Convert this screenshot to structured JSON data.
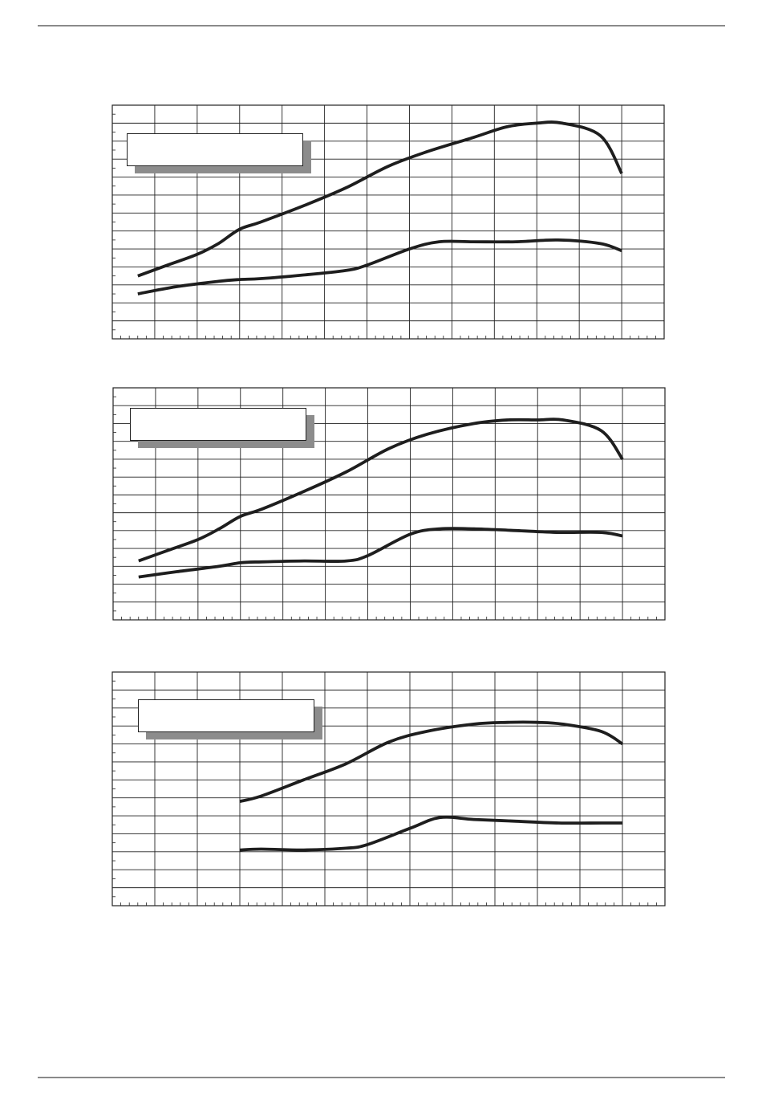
{
  "page": {
    "line_color": "#1e1e1e",
    "grid_color": "#222222",
    "rule_color": "#8a8a8a",
    "legend_shadow_color": "#8c8c8c"
  },
  "chart_data": [
    {
      "type": "line",
      "xlim": [
        0,
        13
      ],
      "ylim": [
        0,
        13
      ],
      "grid": true,
      "legend": {
        "placement": "top-left",
        "entries": []
      },
      "series": [
        {
          "x": [
            0.6,
            1.3,
            2.0,
            2.5,
            3.0,
            3.5,
            4.5,
            5.5,
            6.5,
            7.4,
            8.5,
            9.3,
            10.0,
            10.6,
            11.5,
            12.0
          ],
          "y": [
            3.5,
            4.1,
            4.7,
            5.3,
            6.1,
            6.5,
            7.4,
            8.4,
            9.6,
            10.4,
            11.2,
            11.8,
            12.0,
            12.0,
            11.3,
            9.2
          ]
        },
        {
          "x": [
            0.6,
            1.5,
            2.5,
            3.0,
            3.5,
            4.5,
            5.5,
            6.0,
            7.0,
            7.7,
            8.5,
            9.5,
            10.5,
            11.5,
            12.0
          ],
          "y": [
            2.5,
            2.9,
            3.2,
            3.3,
            3.35,
            3.55,
            3.8,
            4.1,
            5.0,
            5.4,
            5.4,
            5.4,
            5.5,
            5.3,
            4.9
          ]
        }
      ]
    },
    {
      "type": "line",
      "xlim": [
        0,
        13
      ],
      "ylim": [
        0,
        13
      ],
      "grid": true,
      "legend": {
        "placement": "top-left",
        "entries": []
      },
      "series": [
        {
          "x": [
            0.6,
            1.3,
            2.0,
            2.5,
            3.0,
            3.5,
            4.5,
            5.5,
            6.5,
            7.4,
            8.5,
            9.3,
            10.0,
            10.6,
            11.5,
            12.0
          ],
          "y": [
            3.3,
            3.9,
            4.5,
            5.1,
            5.8,
            6.2,
            7.2,
            8.3,
            9.6,
            10.4,
            11.0,
            11.2,
            11.2,
            11.2,
            10.6,
            9.0
          ]
        },
        {
          "x": [
            0.6,
            1.5,
            2.5,
            3.0,
            3.5,
            4.5,
            5.5,
            6.0,
            7.0,
            7.7,
            8.5,
            9.5,
            10.5,
            11.5,
            12.0
          ],
          "y": [
            2.4,
            2.7,
            3.0,
            3.2,
            3.25,
            3.3,
            3.3,
            3.6,
            4.8,
            5.1,
            5.1,
            5.0,
            4.9,
            4.9,
            4.7
          ]
        }
      ]
    },
    {
      "type": "line",
      "xlim": [
        0,
        13
      ],
      "ylim": [
        0,
        13
      ],
      "grid": true,
      "legend": {
        "placement": "top-left",
        "entries": []
      },
      "series": [
        {
          "x": [
            3.0,
            3.5,
            4.5,
            5.5,
            6.5,
            7.4,
            8.5,
            9.3,
            10.0,
            10.6,
            11.5,
            12.0
          ],
          "y": [
            5.8,
            6.1,
            7.0,
            7.9,
            9.1,
            9.7,
            10.1,
            10.2,
            10.2,
            10.1,
            9.7,
            9.0
          ]
        },
        {
          "x": [
            3.0,
            3.5,
            4.5,
            5.5,
            6.0,
            7.0,
            7.7,
            8.5,
            9.5,
            10.5,
            11.5,
            12.0
          ],
          "y": [
            3.1,
            3.15,
            3.1,
            3.2,
            3.4,
            4.3,
            4.9,
            4.8,
            4.7,
            4.6,
            4.6,
            4.6
          ]
        }
      ]
    }
  ]
}
